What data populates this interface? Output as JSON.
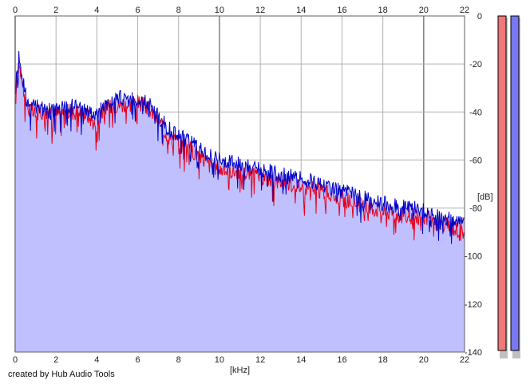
{
  "chart_data": {
    "type": "area",
    "xlabel": "[kHz]",
    "ylabel": "[dB]",
    "xlim": [
      0,
      22
    ],
    "ylim": [
      -140,
      0
    ],
    "x_ticks": [
      0,
      2,
      4,
      6,
      8,
      10,
      12,
      14,
      16,
      18,
      20,
      22
    ],
    "y_ticks": [
      0,
      -20,
      -40,
      -60,
      -80,
      -100,
      -120,
      -140
    ],
    "grid": true,
    "series": [
      {
        "channel": "red",
        "color": "#e8001c",
        "x": [
          0.0,
          0.1,
          0.2,
          0.3,
          0.4,
          0.5,
          0.6,
          0.8,
          1.0,
          1.2,
          1.5,
          1.8,
          2.0,
          2.5,
          3.0,
          3.5,
          3.8,
          4.0,
          4.2,
          4.5,
          5.0,
          5.5,
          6.0,
          6.5,
          7.0,
          7.5,
          8.0,
          8.5,
          9.0,
          9.5,
          10.0,
          11.0,
          12.0,
          13.0,
          14.0,
          15.0,
          16.0,
          17.0,
          18.0,
          19.0,
          20.0,
          21.0,
          22.0
        ],
        "y": [
          -38,
          -22,
          -18,
          -24,
          -30,
          -34,
          -38,
          -40,
          -41,
          -40,
          -40,
          -41,
          -41,
          -40,
          -40,
          -41,
          -44,
          -46,
          -40,
          -38,
          -37,
          -37,
          -36,
          -38,
          -44,
          -50,
          -53,
          -55,
          -58,
          -62,
          -64,
          -65,
          -67,
          -69,
          -71,
          -73,
          -76,
          -79,
          -81,
          -83,
          -84,
          -87,
          -90
        ]
      },
      {
        "channel": "blue",
        "color": "#0000c8",
        "x": [
          0.0,
          0.1,
          0.2,
          0.3,
          0.4,
          0.5,
          0.6,
          0.8,
          1.0,
          1.2,
          1.5,
          1.8,
          2.0,
          2.5,
          3.0,
          3.5,
          3.8,
          4.0,
          4.2,
          4.5,
          5.0,
          5.5,
          6.0,
          6.5,
          7.0,
          7.5,
          8.0,
          8.5,
          9.0,
          9.5,
          10.0,
          11.0,
          12.0,
          13.0,
          14.0,
          15.0,
          16.0,
          17.0,
          18.0,
          19.0,
          20.0,
          21.0,
          22.0
        ],
        "y": [
          -35,
          -20,
          -16,
          -22,
          -28,
          -32,
          -36,
          -38,
          -38,
          -38,
          -39,
          -40,
          -39,
          -38,
          -38,
          -39,
          -41,
          -42,
          -37,
          -36,
          -34,
          -35,
          -34,
          -36,
          -42,
          -47,
          -50,
          -52,
          -55,
          -58,
          -60,
          -62,
          -64,
          -66,
          -68,
          -70,
          -73,
          -76,
          -78,
          -80,
          -81,
          -84,
          -87
        ]
      }
    ],
    "level_meters": [
      {
        "channel": "red",
        "color": "#f07878"
      },
      {
        "channel": "blue",
        "color": "#7878f0"
      }
    ]
  },
  "footer": {
    "credit": "created by Hub Audio Tools"
  }
}
